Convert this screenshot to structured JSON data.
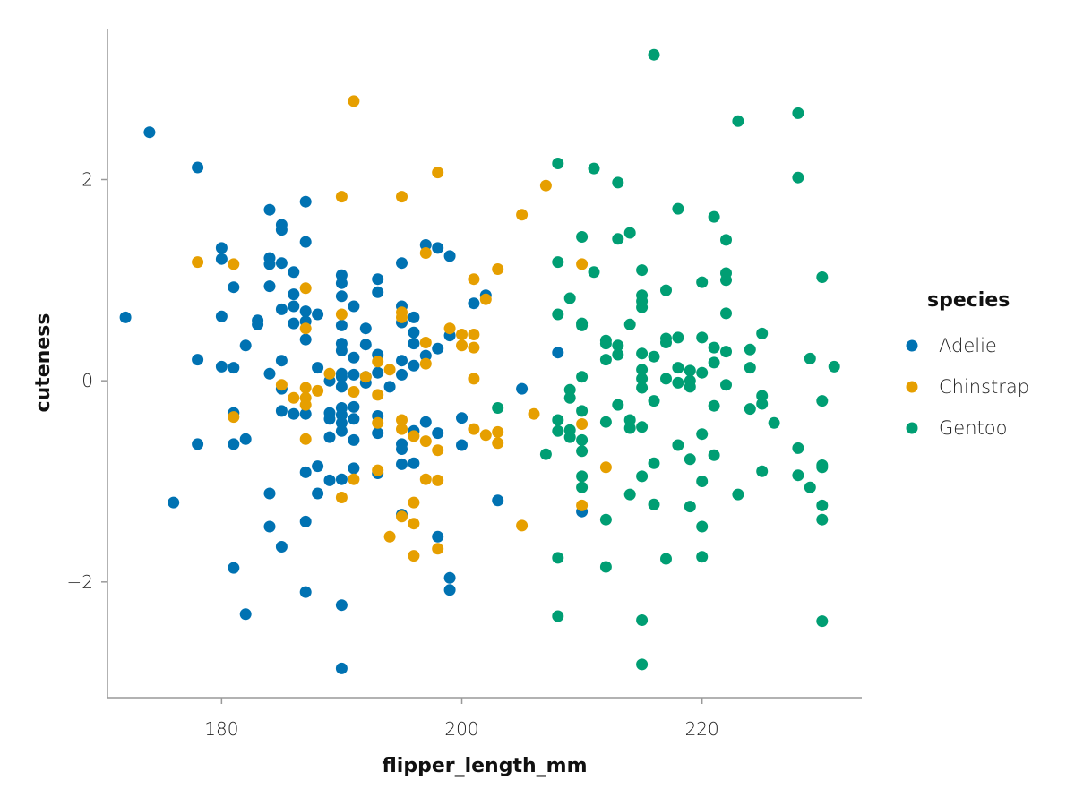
{
  "chart_data": {
    "type": "scatter",
    "xlabel": "flipper_length_mm",
    "ylabel": "cuteness",
    "x_ticks": [
      180,
      200,
      220
    ],
    "y_ticks": [
      -2,
      0,
      2
    ],
    "xlim": [
      170.5,
      233.3
    ],
    "ylim": [
      -3.15,
      3.5
    ],
    "grid": false,
    "legend": {
      "title": "species",
      "position": "right"
    },
    "series": [
      {
        "name": "Adelie",
        "color": "#0072B2",
        "points": [
          [
            172,
            0.63
          ],
          [
            174,
            2.47
          ],
          [
            176,
            -1.21
          ],
          [
            178,
            2.12
          ],
          [
            178,
            0.21
          ],
          [
            178,
            -0.63
          ],
          [
            180,
            1.32
          ],
          [
            180,
            1.21
          ],
          [
            180,
            0.64
          ],
          [
            180,
            0.14
          ],
          [
            181,
            0.93
          ],
          [
            181,
            0.13
          ],
          [
            181,
            -0.32
          ],
          [
            181,
            -0.63
          ],
          [
            181,
            -1.86
          ],
          [
            182,
            0.35
          ],
          [
            182,
            -0.58
          ],
          [
            182,
            -2.32
          ],
          [
            183,
            0.6
          ],
          [
            183,
            0.56
          ],
          [
            184,
            1.7
          ],
          [
            184,
            1.22
          ],
          [
            184,
            1.16
          ],
          [
            184,
            0.94
          ],
          [
            184,
            0.07
          ],
          [
            184,
            -1.12
          ],
          [
            184,
            -1.45
          ],
          [
            185,
            1.55
          ],
          [
            185,
            1.5
          ],
          [
            185,
            1.17
          ],
          [
            185,
            0.71
          ],
          [
            185,
            0.2
          ],
          [
            185,
            -0.08
          ],
          [
            185,
            -0.3
          ],
          [
            185,
            -1.65
          ],
          [
            186,
            1.08
          ],
          [
            186,
            0.86
          ],
          [
            186,
            0.74
          ],
          [
            186,
            0.57
          ],
          [
            186,
            -0.33
          ],
          [
            187,
            1.78
          ],
          [
            187,
            1.38
          ],
          [
            187,
            0.69
          ],
          [
            187,
            0.59
          ],
          [
            187,
            0.41
          ],
          [
            187,
            -0.33
          ],
          [
            187,
            -0.91
          ],
          [
            187,
            -1.4
          ],
          [
            187,
            -2.1
          ],
          [
            188,
            0.66
          ],
          [
            188,
            0.13
          ],
          [
            188,
            -0.85
          ],
          [
            188,
            -1.12
          ],
          [
            189,
            0.0
          ],
          [
            189,
            -0.32
          ],
          [
            189,
            -0.38
          ],
          [
            189,
            -0.56
          ],
          [
            189,
            -0.99
          ],
          [
            190,
            1.05
          ],
          [
            190,
            0.97
          ],
          [
            190,
            0.84
          ],
          [
            190,
            0.55
          ],
          [
            190,
            0.37
          ],
          [
            190,
            0.3
          ],
          [
            190,
            0.07
          ],
          [
            190,
            0.04
          ],
          [
            190,
            -0.06
          ],
          [
            190,
            -0.27
          ],
          [
            190,
            -0.34
          ],
          [
            190,
            -0.42
          ],
          [
            190,
            -0.5
          ],
          [
            190,
            -0.98
          ],
          [
            190,
            -2.23
          ],
          [
            190,
            -2.86
          ],
          [
            191,
            0.74
          ],
          [
            191,
            0.23
          ],
          [
            191,
            0.06
          ],
          [
            191,
            -0.26
          ],
          [
            191,
            -0.38
          ],
          [
            191,
            -0.59
          ],
          [
            191,
            -0.87
          ],
          [
            192,
            0.52
          ],
          [
            192,
            0.36
          ],
          [
            192,
            0.04
          ],
          [
            192,
            -0.02
          ],
          [
            193,
            1.01
          ],
          [
            193,
            0.88
          ],
          [
            193,
            0.26
          ],
          [
            193,
            0.08
          ],
          [
            193,
            -0.35
          ],
          [
            193,
            -0.52
          ],
          [
            193,
            -0.92
          ],
          [
            194,
            -0.06
          ],
          [
            195,
            1.17
          ],
          [
            195,
            0.74
          ],
          [
            195,
            0.58
          ],
          [
            195,
            0.2
          ],
          [
            195,
            0.06
          ],
          [
            195,
            -0.63
          ],
          [
            195,
            -0.68
          ],
          [
            195,
            -0.83
          ],
          [
            195,
            -1.33
          ],
          [
            196,
            0.63
          ],
          [
            196,
            0.48
          ],
          [
            196,
            0.37
          ],
          [
            196,
            0.15
          ],
          [
            196,
            -0.5
          ],
          [
            196,
            -0.82
          ],
          [
            197,
            1.35
          ],
          [
            197,
            0.25
          ],
          [
            197,
            -0.41
          ],
          [
            198,
            1.32
          ],
          [
            198,
            0.32
          ],
          [
            198,
            -0.52
          ],
          [
            198,
            -1.55
          ],
          [
            199,
            1.24
          ],
          [
            199,
            0.45
          ],
          [
            199,
            -1.96
          ],
          [
            199,
            -2.08
          ],
          [
            200,
            -0.37
          ],
          [
            200,
            -0.64
          ],
          [
            201,
            0.77
          ],
          [
            202,
            0.85
          ],
          [
            203,
            -1.19
          ],
          [
            205,
            -0.08
          ],
          [
            208,
            0.28
          ],
          [
            210,
            -1.3
          ]
        ]
      },
      {
        "name": "Chinstrap",
        "color": "#E69F00",
        "points": [
          [
            178,
            1.18
          ],
          [
            181,
            1.16
          ],
          [
            181,
            -0.36
          ],
          [
            185,
            -0.04
          ],
          [
            186,
            -0.17
          ],
          [
            187,
            0.92
          ],
          [
            187,
            0.52
          ],
          [
            187,
            -0.07
          ],
          [
            187,
            -0.17
          ],
          [
            187,
            -0.24
          ],
          [
            187,
            -0.58
          ],
          [
            188,
            -0.1
          ],
          [
            189,
            0.07
          ],
          [
            190,
            1.83
          ],
          [
            190,
            0.66
          ],
          [
            190,
            -1.16
          ],
          [
            191,
            2.78
          ],
          [
            191,
            -0.11
          ],
          [
            191,
            -0.98
          ],
          [
            192,
            0.04
          ],
          [
            193,
            0.19
          ],
          [
            193,
            -0.14
          ],
          [
            193,
            -0.42
          ],
          [
            193,
            -0.89
          ],
          [
            194,
            0.11
          ],
          [
            195,
            1.83
          ],
          [
            195,
            0.68
          ],
          [
            195,
            0.63
          ],
          [
            195,
            -0.39
          ],
          [
            195,
            -0.48
          ],
          [
            195,
            -1.35
          ],
          [
            196,
            -0.55
          ],
          [
            196,
            -1.21
          ],
          [
            196,
            -1.42
          ],
          [
            196,
            -1.74
          ],
          [
            194,
            -1.55
          ],
          [
            197,
            1.27
          ],
          [
            197,
            0.38
          ],
          [
            197,
            0.17
          ],
          [
            197,
            -0.6
          ],
          [
            197,
            -0.98
          ],
          [
            198,
            2.07
          ],
          [
            198,
            -0.69
          ],
          [
            198,
            -0.99
          ],
          [
            198,
            -1.67
          ],
          [
            199,
            0.52
          ],
          [
            200,
            0.46
          ],
          [
            200,
            0.35
          ],
          [
            201,
            1.01
          ],
          [
            201,
            0.46
          ],
          [
            201,
            0.33
          ],
          [
            201,
            0.02
          ],
          [
            201,
            -0.48
          ],
          [
            202,
            0.81
          ],
          [
            202,
            -0.54
          ],
          [
            203,
            1.11
          ],
          [
            203,
            -0.51
          ],
          [
            203,
            -0.62
          ],
          [
            205,
            1.65
          ],
          [
            205,
            -1.44
          ],
          [
            206,
            -0.33
          ],
          [
            207,
            1.94
          ],
          [
            210,
            1.16
          ],
          [
            210,
            -0.43
          ],
          [
            210,
            -1.24
          ],
          [
            212,
            -0.86
          ]
        ]
      },
      {
        "name": "Gentoo",
        "color": "#009E73",
        "points": [
          [
            203,
            -0.27
          ],
          [
            207,
            -0.73
          ],
          [
            208,
            2.16
          ],
          [
            208,
            1.18
          ],
          [
            208,
            0.66
          ],
          [
            208,
            -0.39
          ],
          [
            208,
            -0.5
          ],
          [
            208,
            -1.76
          ],
          [
            208,
            -2.34
          ],
          [
            209,
            0.82
          ],
          [
            209,
            -0.09
          ],
          [
            209,
            -0.17
          ],
          [
            209,
            -0.49
          ],
          [
            209,
            -0.56
          ],
          [
            210,
            1.43
          ],
          [
            210,
            0.57
          ],
          [
            210,
            0.55
          ],
          [
            210,
            0.04
          ],
          [
            210,
            -0.3
          ],
          [
            210,
            -0.59
          ],
          [
            210,
            -0.7
          ],
          [
            210,
            -0.95
          ],
          [
            210,
            -1.06
          ],
          [
            211,
            2.11
          ],
          [
            211,
            1.08
          ],
          [
            212,
            0.4
          ],
          [
            212,
            0.37
          ],
          [
            212,
            0.21
          ],
          [
            212,
            -0.41
          ],
          [
            212,
            -1.38
          ],
          [
            212,
            -1.85
          ],
          [
            213,
            1.97
          ],
          [
            213,
            1.41
          ],
          [
            213,
            0.35
          ],
          [
            213,
            0.26
          ],
          [
            213,
            -0.24
          ],
          [
            214,
            1.47
          ],
          [
            214,
            0.56
          ],
          [
            214,
            -0.39
          ],
          [
            214,
            -0.47
          ],
          [
            214,
            -1.13
          ],
          [
            215,
            1.1
          ],
          [
            215,
            0.85
          ],
          [
            215,
            0.79
          ],
          [
            215,
            0.73
          ],
          [
            215,
            0.27
          ],
          [
            215,
            0.11
          ],
          [
            215,
            0.02
          ],
          [
            215,
            -0.07
          ],
          [
            215,
            -0.46
          ],
          [
            215,
            -0.95
          ],
          [
            215,
            -2.38
          ],
          [
            215,
            -2.82
          ],
          [
            216,
            3.24
          ],
          [
            216,
            0.24
          ],
          [
            216,
            -0.2
          ],
          [
            216,
            -0.82
          ],
          [
            216,
            -1.23
          ],
          [
            217,
            0.9
          ],
          [
            217,
            0.42
          ],
          [
            217,
            0.38
          ],
          [
            217,
            0.02
          ],
          [
            217,
            -1.77
          ],
          [
            218,
            1.71
          ],
          [
            218,
            0.43
          ],
          [
            218,
            0.13
          ],
          [
            218,
            -0.02
          ],
          [
            218,
            -0.64
          ],
          [
            219,
            0.1
          ],
          [
            219,
            0.0
          ],
          [
            219,
            -0.06
          ],
          [
            219,
            -0.78
          ],
          [
            219,
            -1.25
          ],
          [
            220,
            0.98
          ],
          [
            220,
            0.43
          ],
          [
            220,
            0.08
          ],
          [
            220,
            -0.53
          ],
          [
            220,
            -1.0
          ],
          [
            220,
            -1.45
          ],
          [
            220,
            -1.75
          ],
          [
            221,
            1.63
          ],
          [
            221,
            0.33
          ],
          [
            221,
            0.18
          ],
          [
            221,
            -0.25
          ],
          [
            221,
            -0.74
          ],
          [
            222,
            1.4
          ],
          [
            222,
            1.07
          ],
          [
            222,
            1.0
          ],
          [
            222,
            0.67
          ],
          [
            222,
            0.29
          ],
          [
            222,
            -0.04
          ],
          [
            223,
            2.58
          ],
          [
            223,
            -1.13
          ],
          [
            224,
            0.31
          ],
          [
            224,
            0.13
          ],
          [
            224,
            -0.28
          ],
          [
            225,
            0.47
          ],
          [
            225,
            -0.15
          ],
          [
            225,
            -0.23
          ],
          [
            225,
            -0.9
          ],
          [
            226,
            -0.42
          ],
          [
            228,
            2.66
          ],
          [
            228,
            2.02
          ],
          [
            228,
            -0.67
          ],
          [
            228,
            -0.94
          ],
          [
            229,
            0.22
          ],
          [
            229,
            -1.06
          ],
          [
            230,
            1.03
          ],
          [
            230,
            -0.2
          ],
          [
            230,
            -0.84
          ],
          [
            230,
            -0.86
          ],
          [
            230,
            -1.24
          ],
          [
            230,
            -1.38
          ],
          [
            230,
            -2.39
          ],
          [
            231,
            0.14
          ]
        ]
      }
    ]
  }
}
